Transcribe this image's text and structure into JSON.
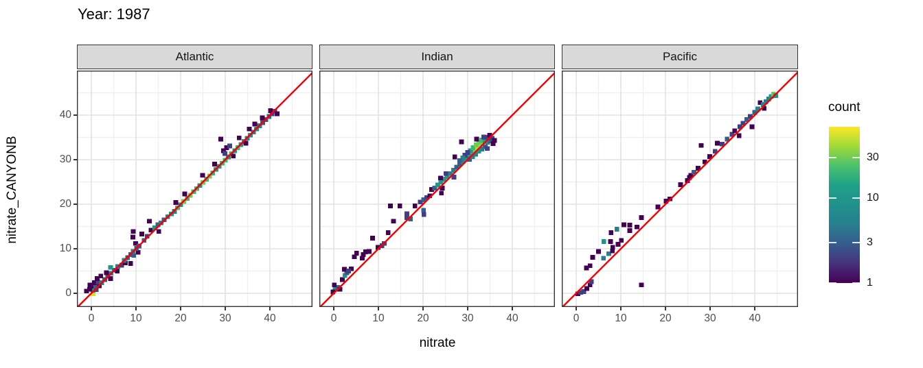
{
  "chart_data": {
    "type": "heatmap",
    "subtype": "binned-2d-scatter",
    "title": "Year: 1987",
    "xlabel": "nitrate",
    "ylabel": "nitrate_CANYONB",
    "x_ticks": [
      0,
      10,
      20,
      30,
      40
    ],
    "y_ticks": [
      0,
      10,
      20,
      30,
      40
    ],
    "minor_ticks": [
      5,
      15,
      25,
      35,
      45
    ],
    "xlim": [
      -3.2,
      49.6
    ],
    "ylim": [
      -3.1,
      50.0
    ],
    "grid": "on",
    "refline": {
      "name": "identity-line",
      "equation": "y = x",
      "color": "#f50000"
    },
    "legend": {
      "title": "count",
      "scale": "log10",
      "ticks": [
        30,
        10,
        3,
        1
      ],
      "max": 70,
      "colormap": "viridis",
      "position": "right"
    },
    "facets": [
      {
        "name": "Atlantic",
        "bins": [
          [
            0.4,
            -0.1,
            55
          ],
          [
            0.4,
            0.7,
            5
          ],
          [
            1.1,
            0.8,
            2
          ],
          [
            -0.4,
            0.9,
            1
          ],
          [
            -1.1,
            0.5,
            1
          ],
          [
            0.2,
            1.6,
            1
          ],
          [
            1.0,
            1.6,
            3
          ],
          [
            1.8,
            1.7,
            1
          ],
          [
            -0.3,
            1.9,
            1
          ],
          [
            0.7,
            2.4,
            1
          ],
          [
            1.5,
            2.5,
            2
          ],
          [
            2.3,
            2.4,
            5
          ],
          [
            1.3,
            3.3,
            1
          ],
          [
            3.0,
            3.1,
            3
          ],
          [
            2.1,
            3.9,
            1
          ],
          [
            3.7,
            3.8,
            3
          ],
          [
            4.3,
            3.3,
            1
          ],
          [
            4.4,
            4.5,
            5
          ],
          [
            3.4,
            4.6,
            1
          ],
          [
            5.1,
            5.2,
            3
          ],
          [
            4.3,
            5.8,
            10
          ],
          [
            5.8,
            5.0,
            1
          ],
          [
            5.9,
            6.0,
            5
          ],
          [
            6.8,
            6.3,
            2
          ],
          [
            7.6,
            6.8,
            1
          ],
          [
            8.8,
            6.7,
            1
          ],
          [
            7.4,
            7.4,
            5
          ],
          [
            8.1,
            8.0,
            3
          ],
          [
            8.8,
            8.7,
            3
          ],
          [
            9.5,
            8.5,
            3
          ],
          [
            9.4,
            9.4,
            5
          ],
          [
            10.5,
            9.2,
            1
          ],
          [
            10.1,
            10.1,
            3
          ],
          [
            9.9,
            11.2,
            1
          ],
          [
            10.7,
            10.6,
            3
          ],
          [
            11.8,
            11.9,
            3
          ],
          [
            12.5,
            12.8,
            2
          ],
          [
            9.4,
            13.9,
            1
          ],
          [
            9.3,
            12.6,
            1
          ],
          [
            11.3,
            13.3,
            1
          ],
          [
            13.4,
            14.2,
            1
          ],
          [
            14.2,
            14.7,
            10
          ],
          [
            15.1,
            13.9,
            1
          ],
          [
            13.0,
            16.2,
            1
          ],
          [
            14.9,
            15.4,
            3
          ],
          [
            15.6,
            15.8,
            5
          ],
          [
            16.3,
            16.5,
            3
          ],
          [
            17.1,
            17.2,
            5
          ],
          [
            17.9,
            17.8,
            10
          ],
          [
            18.6,
            18.4,
            5
          ],
          [
            19.3,
            19.2,
            20
          ],
          [
            20.0,
            19.9,
            10
          ],
          [
            18.9,
            20.4,
            1
          ],
          [
            20.7,
            20.6,
            30
          ],
          [
            21.5,
            21.3,
            20
          ],
          [
            22.2,
            22.0,
            30
          ],
          [
            22.9,
            22.8,
            20
          ],
          [
            20.9,
            22.3,
            1
          ],
          [
            23.6,
            23.5,
            20
          ],
          [
            24.3,
            24.2,
            10
          ],
          [
            25.0,
            24.9,
            30
          ],
          [
            25.8,
            25.6,
            20
          ],
          [
            26.5,
            26.3,
            30
          ],
          [
            24.9,
            26.5,
            1
          ],
          [
            27.2,
            27.0,
            20
          ],
          [
            27.9,
            27.8,
            10
          ],
          [
            28.6,
            28.5,
            10
          ],
          [
            29.3,
            29.2,
            20
          ],
          [
            27.6,
            29.0,
            1
          ],
          [
            30.0,
            29.9,
            20
          ],
          [
            30.7,
            30.6,
            10
          ],
          [
            29.0,
            34.6,
            1
          ],
          [
            29.6,
            32.0,
            1
          ],
          [
            30.3,
            32.7,
            1
          ],
          [
            31.0,
            33.1,
            2
          ],
          [
            29.9,
            31.4,
            2
          ],
          [
            31.4,
            31.3,
            20
          ],
          [
            32.1,
            32.0,
            10
          ],
          [
            31.8,
            30.8,
            1
          ],
          [
            32.8,
            32.7,
            20
          ],
          [
            33.5,
            33.4,
            10
          ],
          [
            33.1,
            34.9,
            1
          ],
          [
            34.2,
            34.1,
            10
          ],
          [
            34.9,
            34.8,
            5
          ],
          [
            35.6,
            35.5,
            10
          ],
          [
            34.6,
            33.7,
            1
          ],
          [
            36.3,
            36.2,
            5
          ],
          [
            35.4,
            36.9,
            1
          ],
          [
            37.0,
            36.9,
            10
          ],
          [
            37.7,
            37.6,
            5
          ],
          [
            38.4,
            38.3,
            3
          ],
          [
            36.6,
            38.0,
            1
          ],
          [
            39.1,
            39.0,
            3
          ],
          [
            39.8,
            39.7,
            3
          ],
          [
            38.3,
            39.4,
            1
          ],
          [
            40.5,
            40.3,
            2
          ],
          [
            41.1,
            40.9,
            2
          ],
          [
            40.1,
            41.0,
            1
          ],
          [
            41.6,
            40.3,
            1
          ]
        ]
      },
      {
        "name": "Indian",
        "bins": [
          [
            0.3,
            0.9,
            10
          ],
          [
            0.9,
            1.3,
            3
          ],
          [
            -0.2,
            0.3,
            1
          ],
          [
            1.4,
            0.9,
            1
          ],
          [
            0.1,
            1.9,
            1
          ],
          [
            1.9,
            3.1,
            1
          ],
          [
            2.5,
            4.0,
            10
          ],
          [
            2.9,
            4.6,
            3
          ],
          [
            2.4,
            5.4,
            1
          ],
          [
            3.9,
            5.5,
            1
          ],
          [
            3.3,
            5.0,
            2
          ],
          [
            4.6,
            8.2,
            1
          ],
          [
            5.1,
            9.0,
            1
          ],
          [
            6.4,
            7.9,
            1
          ],
          [
            7.1,
            9.3,
            1
          ],
          [
            7.9,
            9.4,
            1
          ],
          [
            6.6,
            8.7,
            1
          ],
          [
            8.7,
            12.4,
            1
          ],
          [
            10.8,
            10.7,
            2
          ],
          [
            11.3,
            11.2,
            2
          ],
          [
            9.9,
            10.3,
            1
          ],
          [
            12.2,
            13.6,
            1
          ],
          [
            12.7,
            19.6,
            1
          ],
          [
            13.4,
            16.2,
            1
          ],
          [
            14.8,
            19.6,
            1
          ],
          [
            16.4,
            17.0,
            2
          ],
          [
            16.4,
            17.9,
            2
          ],
          [
            17.2,
            16.7,
            3
          ],
          [
            18.2,
            19.6,
            1
          ],
          [
            19.4,
            20.5,
            2
          ],
          [
            20.1,
            21.0,
            3
          ],
          [
            20.8,
            21.5,
            2
          ],
          [
            20.1,
            18.6,
            3
          ],
          [
            20.2,
            17.7,
            2
          ],
          [
            21.5,
            21.9,
            1
          ],
          [
            24.1,
            22.5,
            1
          ],
          [
            21.9,
            23.3,
            1
          ],
          [
            22.6,
            23.6,
            3
          ],
          [
            23.3,
            24.3,
            10
          ],
          [
            24.0,
            25.0,
            10
          ],
          [
            24.7,
            25.6,
            10
          ],
          [
            25.4,
            26.2,
            10
          ],
          [
            26.1,
            26.9,
            5
          ],
          [
            26.8,
            27.6,
            5
          ],
          [
            25.1,
            26.9,
            2
          ],
          [
            23.9,
            25.9,
            1
          ],
          [
            26.9,
            26.1,
            2
          ],
          [
            24.3,
            23.6,
            1
          ],
          [
            27.5,
            28.3,
            3
          ],
          [
            28.2,
            28.9,
            3
          ],
          [
            28.9,
            29.6,
            5
          ],
          [
            29.6,
            30.2,
            10
          ],
          [
            30.2,
            30.9,
            10
          ],
          [
            28.6,
            34.0,
            1
          ],
          [
            27.1,
            30.6,
            1
          ],
          [
            30.9,
            31.5,
            20
          ],
          [
            31.5,
            32.1,
            30
          ],
          [
            32.1,
            32.6,
            45
          ],
          [
            32.7,
            33.1,
            45
          ],
          [
            33.3,
            33.6,
            30
          ],
          [
            30.6,
            32.0,
            10
          ],
          [
            31.2,
            32.7,
            20
          ],
          [
            31.9,
            33.3,
            30
          ],
          [
            32.5,
            33.9,
            30
          ],
          [
            33.1,
            34.4,
            20
          ],
          [
            33.9,
            34.1,
            10
          ],
          [
            34.5,
            33.9,
            5
          ],
          [
            35.1,
            34.2,
            3
          ],
          [
            35.7,
            33.6,
            1
          ],
          [
            34.6,
            35.0,
            2
          ],
          [
            30.4,
            30.1,
            3
          ],
          [
            31.1,
            30.7,
            5
          ],
          [
            31.8,
            31.2,
            5
          ],
          [
            32.5,
            31.9,
            10
          ],
          [
            33.2,
            32.4,
            5
          ],
          [
            33.9,
            32.9,
            3
          ],
          [
            34.4,
            32.5,
            2
          ],
          [
            30.0,
            31.6,
            2
          ],
          [
            29.4,
            31.0,
            2
          ],
          [
            32.0,
            34.6,
            1
          ],
          [
            33.6,
            35.1,
            2
          ],
          [
            34.9,
            35.5,
            1
          ],
          [
            28.9,
            30.4,
            5
          ],
          [
            28.2,
            29.8,
            3
          ],
          [
            35.5,
            34.8,
            2
          ],
          [
            36.0,
            34.3,
            1
          ]
        ]
      },
      {
        "name": "Pacific",
        "bins": [
          [
            0.4,
            -0.1,
            1
          ],
          [
            1.0,
            0.2,
            2
          ],
          [
            1.7,
            0.4,
            2
          ],
          [
            2.4,
            1.1,
            1
          ],
          [
            3.1,
            1.9,
            1
          ],
          [
            3.4,
            2.6,
            2
          ],
          [
            2.3,
            5.7,
            1
          ],
          [
            3.1,
            6.2,
            1
          ],
          [
            3.7,
            8.1,
            1
          ],
          [
            5.0,
            9.4,
            1
          ],
          [
            6.2,
            11.6,
            10
          ],
          [
            7.7,
            11.6,
            1
          ],
          [
            6.1,
            7.9,
            5
          ],
          [
            7.3,
            8.9,
            5
          ],
          [
            8.1,
            9.5,
            1
          ],
          [
            8.2,
            10.3,
            1
          ],
          [
            9.1,
            14.4,
            5
          ],
          [
            7.8,
            13.6,
            1
          ],
          [
            10.7,
            15.4,
            1
          ],
          [
            12.0,
            14.1,
            1
          ],
          [
            12.0,
            15.3,
            1
          ],
          [
            13.6,
            14.9,
            1
          ],
          [
            14.6,
            17.0,
            1
          ],
          [
            9.4,
            11.0,
            1
          ],
          [
            10.1,
            11.9,
            1
          ],
          [
            14.6,
            1.9,
            1
          ],
          [
            18.3,
            19.4,
            1
          ],
          [
            20.1,
            20.7,
            1
          ],
          [
            21.0,
            21.2,
            1
          ],
          [
            23.4,
            24.4,
            1
          ],
          [
            24.9,
            25.3,
            1
          ],
          [
            25.7,
            26.5,
            1
          ],
          [
            26.4,
            27.2,
            3
          ],
          [
            25.4,
            26.0,
            1
          ],
          [
            28.0,
            33.2,
            1
          ],
          [
            27.3,
            28.1,
            1
          ],
          [
            28.8,
            29.5,
            1
          ],
          [
            29.9,
            30.7,
            1
          ],
          [
            31.1,
            31.9,
            2
          ],
          [
            31.6,
            33.7,
            1
          ],
          [
            32.7,
            33.5,
            2
          ],
          [
            33.8,
            34.6,
            3
          ],
          [
            34.9,
            35.7,
            2
          ],
          [
            35.5,
            36.5,
            1
          ],
          [
            36.5,
            35.4,
            1
          ],
          [
            36.7,
            37.4,
            2
          ],
          [
            37.4,
            38.2,
            2
          ],
          [
            38.2,
            39.0,
            3
          ],
          [
            39.0,
            39.7,
            2
          ],
          [
            39.4,
            37.4,
            1
          ],
          [
            40.0,
            40.6,
            3
          ],
          [
            40.7,
            41.4,
            5
          ],
          [
            41.2,
            42.8,
            1
          ],
          [
            41.9,
            42.4,
            5
          ],
          [
            42.5,
            43.0,
            5
          ],
          [
            43.1,
            43.6,
            5
          ],
          [
            43.7,
            44.2,
            10
          ],
          [
            44.2,
            44.7,
            30
          ],
          [
            44.7,
            44.4,
            10
          ],
          [
            42.1,
            41.5,
            1
          ]
        ]
      }
    ]
  }
}
